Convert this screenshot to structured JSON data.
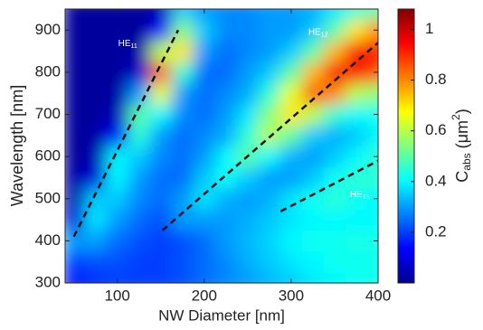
{
  "chart_data": {
    "type": "heatmap",
    "xlabel": "NW Diameter [nm]",
    "ylabel": "Wavelength [nm]",
    "colorbar_label": [
      "C",
      "abs",
      " (μm",
      "2",
      ")"
    ],
    "colormap": "jet",
    "xlim": [
      40,
      400
    ],
    "ylim": [
      300,
      950
    ],
    "clim": [
      0,
      1.08
    ],
    "xticks": [
      100,
      200,
      300,
      400
    ],
    "yticks": [
      300,
      400,
      500,
      600,
      700,
      800,
      900
    ],
    "cticks": [
      0.2,
      0.4,
      0.6,
      0.8,
      1
    ],
    "x": [
      50,
      75,
      100,
      125,
      150,
      175,
      200,
      225,
      250,
      275,
      300,
      325,
      350,
      375,
      400
    ],
    "y": [
      300,
      350,
      400,
      450,
      500,
      550,
      600,
      650,
      700,
      750,
      800,
      850,
      900,
      950
    ],
    "z": [
      [
        0.15,
        0.18,
        0.2,
        0.2,
        0.2,
        0.22,
        0.25,
        0.28,
        0.3,
        0.33,
        0.35,
        0.38,
        0.4,
        0.42,
        0.42
      ],
      [
        0.2,
        0.22,
        0.22,
        0.2,
        0.2,
        0.22,
        0.25,
        0.28,
        0.32,
        0.35,
        0.38,
        0.4,
        0.42,
        0.42,
        0.42
      ],
      [
        0.3,
        0.3,
        0.25,
        0.22,
        0.2,
        0.22,
        0.25,
        0.3,
        0.33,
        0.36,
        0.4,
        0.42,
        0.42,
        0.43,
        0.43
      ],
      [
        0.1,
        0.38,
        0.3,
        0.25,
        0.22,
        0.3,
        0.3,
        0.3,
        0.32,
        0.35,
        0.38,
        0.4,
        0.4,
        0.4,
        0.4
      ],
      [
        0.05,
        0.35,
        0.35,
        0.28,
        0.25,
        0.3,
        0.38,
        0.32,
        0.3,
        0.32,
        0.38,
        0.42,
        0.45,
        0.42,
        0.4
      ],
      [
        0.04,
        0.1,
        0.4,
        0.3,
        0.25,
        0.25,
        0.35,
        0.42,
        0.35,
        0.3,
        0.3,
        0.35,
        0.42,
        0.45,
        0.45
      ],
      [
        0.03,
        0.05,
        0.4,
        0.35,
        0.28,
        0.25,
        0.3,
        0.4,
        0.5,
        0.4,
        0.32,
        0.3,
        0.35,
        0.4,
        0.45
      ],
      [
        0.03,
        0.04,
        0.15,
        0.45,
        0.3,
        0.25,
        0.28,
        0.32,
        0.45,
        0.6,
        0.5,
        0.35,
        0.32,
        0.35,
        0.4
      ],
      [
        0.03,
        0.03,
        0.06,
        0.5,
        0.4,
        0.28,
        0.25,
        0.3,
        0.38,
        0.55,
        0.7,
        0.6,
        0.45,
        0.4,
        0.42
      ],
      [
        0.03,
        0.03,
        0.04,
        0.3,
        0.65,
        0.3,
        0.25,
        0.28,
        0.32,
        0.45,
        0.65,
        0.85,
        0.8,
        0.6,
        0.55
      ],
      [
        0.03,
        0.03,
        0.03,
        0.08,
        0.85,
        0.45,
        0.25,
        0.25,
        0.3,
        0.35,
        0.5,
        0.75,
        0.95,
        0.95,
        0.85
      ],
      [
        0.03,
        0.03,
        0.03,
        0.04,
        0.6,
        0.7,
        0.3,
        0.25,
        0.28,
        0.3,
        0.35,
        0.5,
        0.75,
        0.95,
        0.95
      ],
      [
        0.03,
        0.03,
        0.03,
        0.03,
        0.15,
        0.55,
        0.35,
        0.28,
        0.28,
        0.3,
        0.3,
        0.35,
        0.5,
        0.7,
        0.8
      ],
      [
        0.03,
        0.03,
        0.03,
        0.03,
        0.05,
        0.35,
        0.3,
        0.28,
        0.28,
        0.3,
        0.3,
        0.32,
        0.38,
        0.45,
        0.5
      ]
    ],
    "annotations": [
      {
        "text": "HE",
        "sub": "11",
        "x": 112,
        "y": 868
      },
      {
        "text": "HE",
        "sub": "12",
        "x": 331,
        "y": 895
      },
      {
        "text": "HE",
        "sub": "13",
        "x": 379,
        "y": 510
      }
    ],
    "guide_lines": [
      [
        [
          50,
          410
        ],
        [
          170,
          900
        ]
      ],
      [
        [
          152,
          425
        ],
        [
          400,
          870
        ]
      ],
      [
        [
          288,
          470
        ],
        [
          400,
          590
        ]
      ]
    ]
  }
}
